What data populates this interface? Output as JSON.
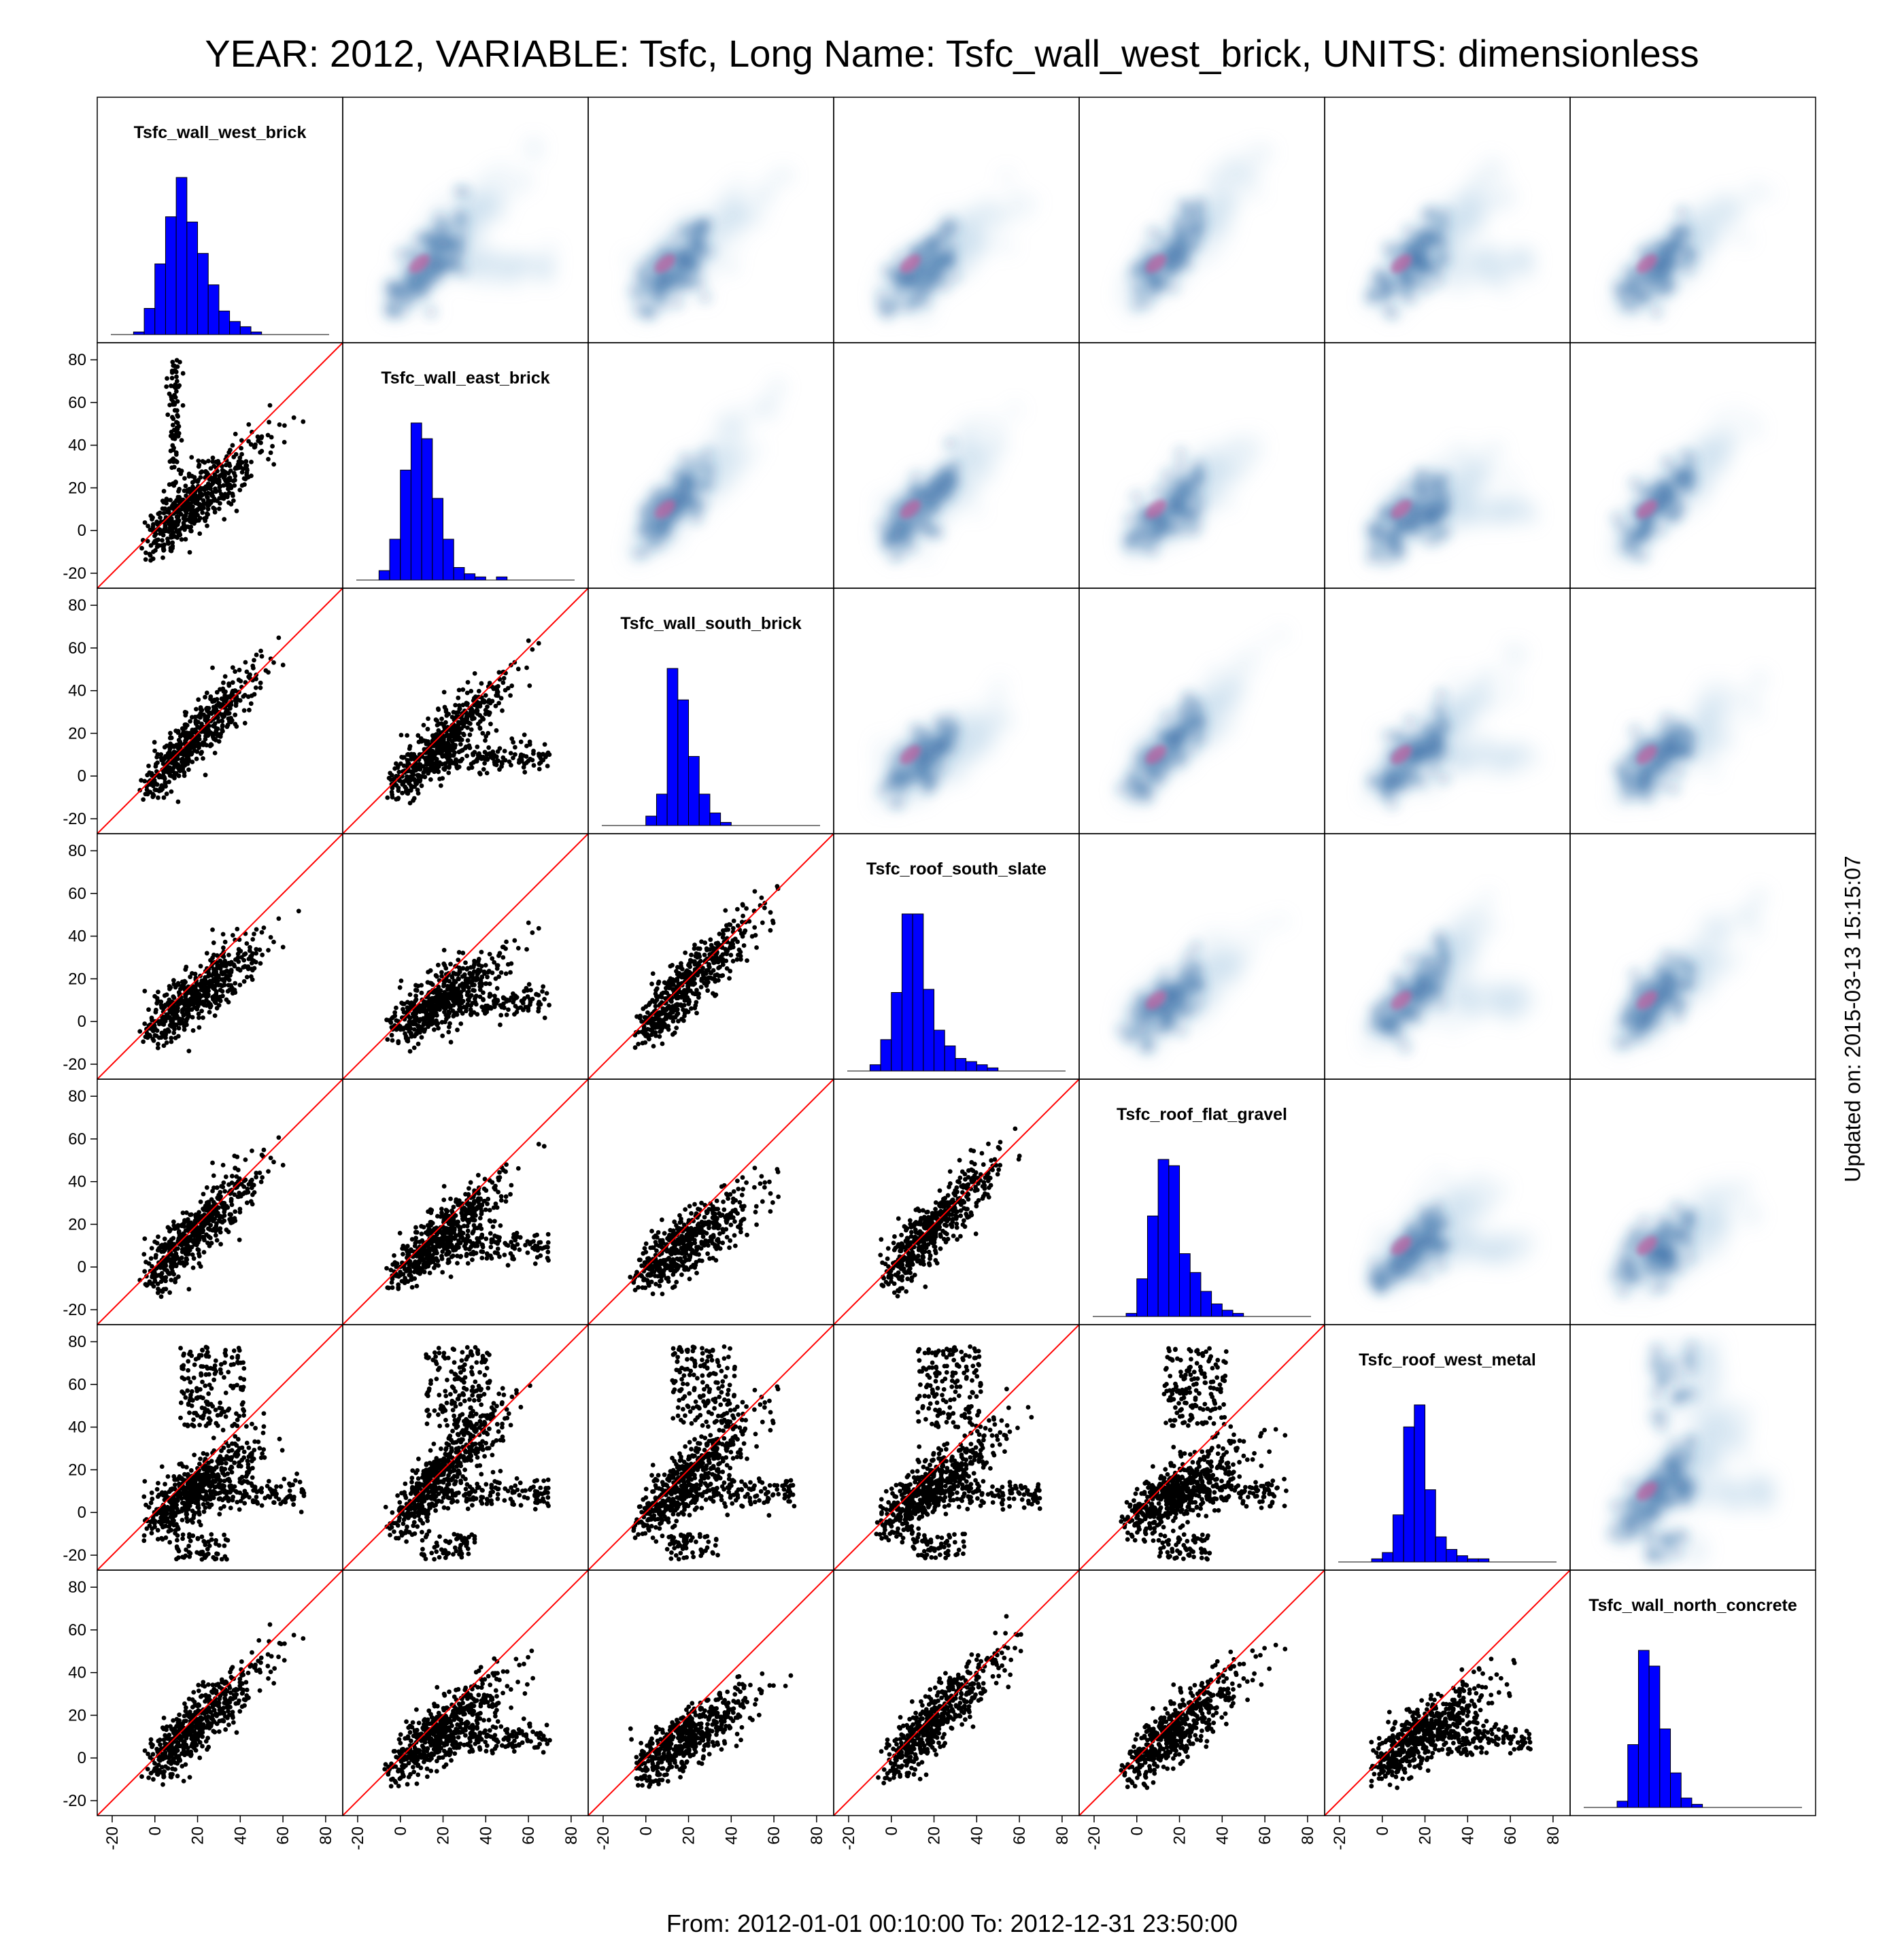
{
  "title": "YEAR: 2012, VARIABLE: Tsfc, Long Name: Tsfc_wall_west_brick, UNITS: dimensionless",
  "footer": "From: 2012-01-01 00:10:00 To: 2012-12-31 23:50:00",
  "updated": "Updated on: 2015-03-13 15:15:07",
  "colors": {
    "scatter": "#000000",
    "diagonal_line": "#ff0000",
    "histogram": "#0000ff",
    "density": "#1f5a9a",
    "density_core": "#c060a0"
  },
  "chart_data": {
    "type": "scatter",
    "layout": "scatterplot-matrix",
    "variables": [
      "Tsfc_wall_west_brick",
      "Tsfc_wall_east_brick",
      "Tsfc_wall_south_brick",
      "Tsfc_roof_south_slate",
      "Tsfc_roof_flat_gravel",
      "Tsfc_roof_west_metal",
      "Tsfc_wall_north_concrete"
    ],
    "axis_ticks": [
      -20,
      0,
      20,
      40,
      60,
      80
    ],
    "axis_tick_labels": [
      "-20",
      "0",
      "20",
      "40",
      "60",
      "80"
    ],
    "xlim": [
      -27,
      88
    ],
    "ylim": [
      -27,
      88
    ],
    "lower_panels": "scatter with y = x reference line",
    "upper_panels": "smoothed density scatter",
    "diagonal_panels": "histogram",
    "histogram_bins": [
      -20,
      -15,
      -10,
      -5,
      0,
      5,
      10,
      15,
      20,
      25,
      30,
      35,
      40,
      45,
      50,
      55,
      60,
      65,
      70,
      75,
      80
    ],
    "histograms": [
      [
        0,
        0,
        1,
        10,
        27,
        45,
        60,
        43,
        31,
        19,
        9,
        5,
        3,
        1,
        0,
        0,
        0,
        0,
        0,
        0
      ],
      [
        0,
        0,
        3,
        13,
        35,
        50,
        45,
        26,
        13,
        4,
        2,
        1,
        0,
        1,
        0,
        0,
        0,
        0,
        0,
        0
      ],
      [
        0,
        0,
        0,
        0,
        3,
        10,
        50,
        40,
        22,
        10,
        4,
        1,
        0,
        0,
        0,
        0,
        0,
        0,
        0,
        0
      ],
      [
        0,
        0,
        2,
        10,
        25,
        50,
        50,
        26,
        13,
        8,
        4,
        3,
        2,
        1,
        0,
        0,
        0,
        0,
        0,
        0
      ],
      [
        0,
        0,
        0,
        1,
        12,
        32,
        50,
        48,
        20,
        14,
        8,
        4,
        2,
        1,
        0,
        0,
        0,
        0,
        0,
        0
      ],
      [
        0,
        0,
        0,
        1,
        3,
        15,
        43,
        50,
        23,
        8,
        4,
        2,
        1,
        1,
        0,
        0,
        0,
        0,
        0,
        0
      ],
      [
        0,
        0,
        0,
        2,
        20,
        50,
        45,
        25,
        11,
        3,
        1,
        0,
        0,
        0,
        0,
        0,
        0,
        0,
        0,
        0
      ]
    ]
  }
}
